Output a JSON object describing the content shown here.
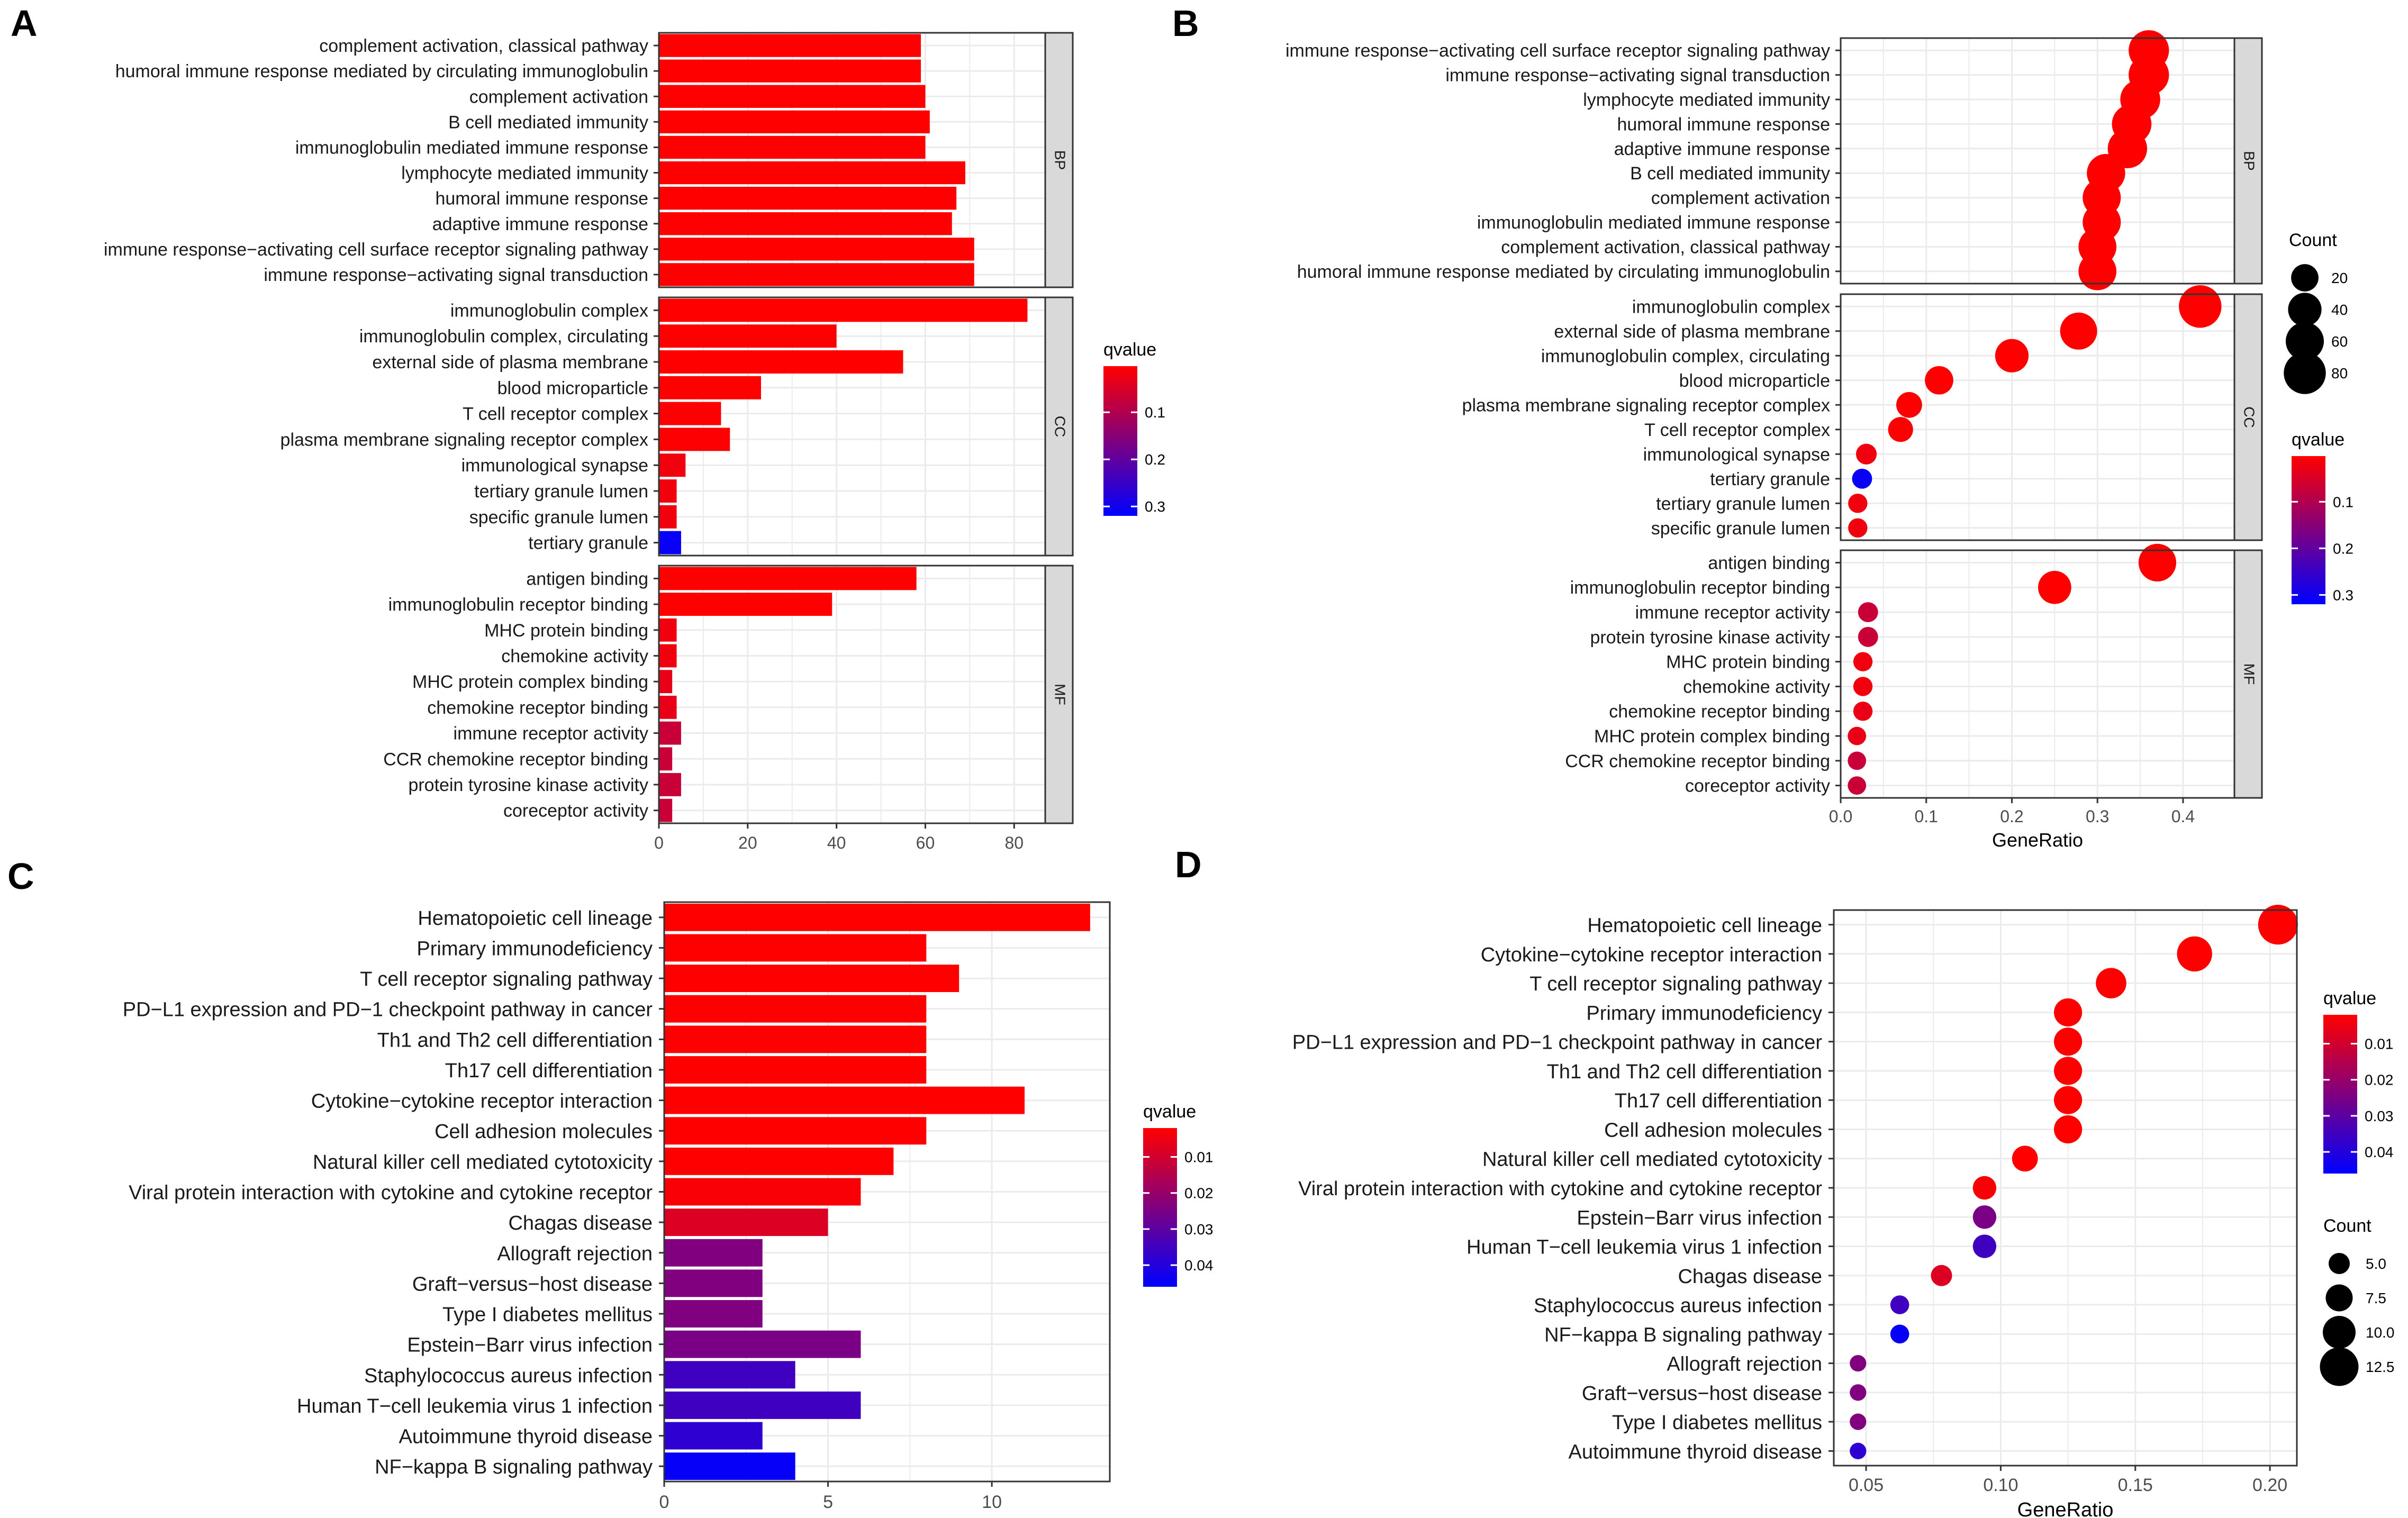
{
  "figure": {
    "panel_letters": [
      "A",
      "B",
      "C",
      "D"
    ]
  },
  "colors": {
    "low_q": "#ff0000",
    "high_q": "#0000ff",
    "grid": "#ebebeb",
    "strip": "#d9d9d9"
  },
  "chart_data": [
    {
      "panel": "A",
      "type": "bar",
      "orientation": "horizontal",
      "xlim": [
        0,
        87
      ],
      "xticks": [
        0,
        20,
        40,
        60,
        80
      ],
      "legend": {
        "title": "qvalue",
        "ticks": [
          "0.1",
          "0.2",
          "0.3"
        ],
        "min": 0.002,
        "max": 0.32,
        "placement": "right"
      },
      "facets": [
        {
          "label": "BP",
          "categories": [
            {
              "name": "complement activation, classical pathway",
              "value": 59,
              "q": 0.001
            },
            {
              "name": "humoral immune response mediated by circulating immunoglobulin",
              "value": 59,
              "q": 0.001
            },
            {
              "name": "complement activation",
              "value": 60,
              "q": 0.001
            },
            {
              "name": "B cell mediated immunity",
              "value": 61,
              "q": 0.001
            },
            {
              "name": "immunoglobulin mediated immune response",
              "value": 60,
              "q": 0.001
            },
            {
              "name": "lymphocyte mediated immunity",
              "value": 69,
              "q": 0.001
            },
            {
              "name": "humoral immune response",
              "value": 67,
              "q": 0.001
            },
            {
              "name": "adaptive immune response",
              "value": 66,
              "q": 0.001
            },
            {
              "name": "immune response−activating cell surface receptor signaling pathway",
              "value": 71,
              "q": 0.001
            },
            {
              "name": "immune response−activating signal transduction",
              "value": 71,
              "q": 0.001
            }
          ]
        },
        {
          "label": "CC",
          "categories": [
            {
              "name": "immunoglobulin complex",
              "value": 83,
              "q": 0.001
            },
            {
              "name": "immunoglobulin complex, circulating",
              "value": 40,
              "q": 0.001
            },
            {
              "name": "external side of plasma membrane",
              "value": 55,
              "q": 0.001
            },
            {
              "name": "blood microparticle",
              "value": 23,
              "q": 0.001
            },
            {
              "name": "T cell receptor complex",
              "value": 14,
              "q": 0.005
            },
            {
              "name": "plasma membrane signaling receptor complex",
              "value": 16,
              "q": 0.005
            },
            {
              "name": "immunological synapse",
              "value": 6,
              "q": 0.02
            },
            {
              "name": "tertiary granule lumen",
              "value": 4,
              "q": 0.02
            },
            {
              "name": "specific granule lumen",
              "value": 4,
              "q": 0.02
            },
            {
              "name": "tertiary granule",
              "value": 5,
              "q": 0.31
            }
          ]
        },
        {
          "label": "MF",
          "categories": [
            {
              "name": "antigen binding",
              "value": 58,
              "q": 0.001
            },
            {
              "name": "immunoglobulin receptor binding",
              "value": 39,
              "q": 0.001
            },
            {
              "name": "MHC protein binding",
              "value": 4,
              "q": 0.02
            },
            {
              "name": "chemokine activity",
              "value": 4,
              "q": 0.02
            },
            {
              "name": "MHC protein complex binding",
              "value": 3,
              "q": 0.03
            },
            {
              "name": "chemokine receptor binding",
              "value": 4,
              "q": 0.03
            },
            {
              "name": "immune receptor activity",
              "value": 5,
              "q": 0.07
            },
            {
              "name": "CCR chemokine receptor binding",
              "value": 3,
              "q": 0.07
            },
            {
              "name": "protein tyrosine kinase activity",
              "value": 5,
              "q": 0.07
            },
            {
              "name": "coreceptor activity",
              "value": 3,
              "q": 0.07
            }
          ]
        }
      ]
    },
    {
      "panel": "B",
      "type": "scatter",
      "xlabel": "GeneRatio",
      "xlim": [
        0,
        0.46
      ],
      "xticks": [
        "0.0",
        "0.1",
        "0.2",
        "0.3",
        "0.4"
      ],
      "size_legend": {
        "title": "Count",
        "ticks": [
          "20",
          "40",
          "60",
          "80"
        ],
        "values": [
          20,
          40,
          60,
          80
        ],
        "range": [
          3,
          87
        ],
        "placement": "right-top"
      },
      "color_legend": {
        "title": "qvalue",
        "ticks": [
          "0.1",
          "0.2",
          "0.3"
        ],
        "min": 0.002,
        "max": 0.32,
        "placement": "right-bottom"
      },
      "facets": [
        {
          "label": "BP",
          "points": [
            {
              "name": "immune response−activating cell surface receptor signaling pathway",
              "x": 0.36,
              "count": 71,
              "q": 0.001
            },
            {
              "name": "immune response−activating signal transduction",
              "x": 0.36,
              "count": 71,
              "q": 0.001
            },
            {
              "name": "lymphocyte mediated immunity",
              "x": 0.35,
              "count": 69,
              "q": 0.001
            },
            {
              "name": "humoral immune response",
              "x": 0.34,
              "count": 67,
              "q": 0.001
            },
            {
              "name": "adaptive immune response",
              "x": 0.335,
              "count": 66,
              "q": 0.001
            },
            {
              "name": "B cell mediated immunity",
              "x": 0.31,
              "count": 61,
              "q": 0.001
            },
            {
              "name": "complement activation",
              "x": 0.305,
              "count": 60,
              "q": 0.001
            },
            {
              "name": "immunoglobulin mediated immune response",
              "x": 0.305,
              "count": 60,
              "q": 0.001
            },
            {
              "name": "complement activation, classical pathway",
              "x": 0.3,
              "count": 59,
              "q": 0.001
            },
            {
              "name": "humoral immune response mediated by circulating immunoglobulin",
              "x": 0.3,
              "count": 59,
              "q": 0.001
            }
          ]
        },
        {
          "label": "CC",
          "points": [
            {
              "name": "immunoglobulin complex",
              "x": 0.42,
              "count": 83,
              "q": 0.001
            },
            {
              "name": "external side of plasma membrane",
              "x": 0.278,
              "count": 55,
              "q": 0.001
            },
            {
              "name": "immunoglobulin complex, circulating",
              "x": 0.2,
              "count": 40,
              "q": 0.001
            },
            {
              "name": "blood microparticle",
              "x": 0.115,
              "count": 23,
              "q": 0.001
            },
            {
              "name": "plasma membrane signaling receptor complex",
              "x": 0.08,
              "count": 16,
              "q": 0.005
            },
            {
              "name": "T cell receptor complex",
              "x": 0.07,
              "count": 14,
              "q": 0.005
            },
            {
              "name": "immunological synapse",
              "x": 0.03,
              "count": 6,
              "q": 0.02
            },
            {
              "name": "tertiary granule",
              "x": 0.025,
              "count": 5,
              "q": 0.31
            },
            {
              "name": "tertiary granule lumen",
              "x": 0.02,
              "count": 4,
              "q": 0.02
            },
            {
              "name": "specific granule lumen",
              "x": 0.02,
              "count": 4,
              "q": 0.02
            }
          ]
        },
        {
          "label": "MF",
          "points": [
            {
              "name": "antigen binding",
              "x": 0.37,
              "count": 58,
              "q": 0.001
            },
            {
              "name": "immunoglobulin receptor binding",
              "x": 0.25,
              "count": 39,
              "q": 0.001
            },
            {
              "name": "immune receptor activity",
              "x": 0.032,
              "count": 5,
              "q": 0.07
            },
            {
              "name": "protein tyrosine kinase activity",
              "x": 0.032,
              "count": 5,
              "q": 0.07
            },
            {
              "name": "MHC protein binding",
              "x": 0.026,
              "count": 4,
              "q": 0.02
            },
            {
              "name": "chemokine activity",
              "x": 0.026,
              "count": 4,
              "q": 0.02
            },
            {
              "name": "chemokine receptor binding",
              "x": 0.026,
              "count": 4,
              "q": 0.03
            },
            {
              "name": "MHC protein complex binding",
              "x": 0.019,
              "count": 3,
              "q": 0.03
            },
            {
              "name": "CCR chemokine receptor binding",
              "x": 0.019,
              "count": 3,
              "q": 0.07
            },
            {
              "name": "coreceptor activity",
              "x": 0.019,
              "count": 3,
              "q": 0.07
            }
          ]
        }
      ]
    },
    {
      "panel": "C",
      "type": "bar",
      "orientation": "horizontal",
      "xlim": [
        0,
        13.6
      ],
      "xticks": [
        0,
        5,
        10
      ],
      "legend": {
        "title": "qvalue",
        "ticks": [
          "0.01",
          "0.02",
          "0.03",
          "0.04"
        ],
        "min": 0.002,
        "max": 0.046,
        "placement": "right"
      },
      "categories": [
        {
          "name": "Hematopoietic cell lineage",
          "value": 13,
          "q": 0.0005
        },
        {
          "name": "Primary immunodeficiency",
          "value": 8,
          "q": 0.0005
        },
        {
          "name": "T cell receptor signaling pathway",
          "value": 9,
          "q": 0.0005
        },
        {
          "name": "PD−L1 expression and PD−1 checkpoint pathway in cancer",
          "value": 8,
          "q": 0.0005
        },
        {
          "name": "Th1 and Th2 cell differentiation",
          "value": 8,
          "q": 0.0005
        },
        {
          "name": "Th17 cell differentiation",
          "value": 8,
          "q": 0.0005
        },
        {
          "name": "Cytokine−cytokine receptor interaction",
          "value": 11,
          "q": 0.0005
        },
        {
          "name": "Cell adhesion molecules",
          "value": 8,
          "q": 0.0005
        },
        {
          "name": "Natural killer cell mediated cytotoxicity",
          "value": 7,
          "q": 0.0005
        },
        {
          "name": "Viral protein interaction with cytokine and cytokine receptor",
          "value": 6,
          "q": 0.003
        },
        {
          "name": "Chagas disease",
          "value": 5,
          "q": 0.008
        },
        {
          "name": "Allograft rejection",
          "value": 3,
          "q": 0.024
        },
        {
          "name": "Graft−versus−host disease",
          "value": 3,
          "q": 0.024
        },
        {
          "name": "Type I diabetes mellitus",
          "value": 3,
          "q": 0.024
        },
        {
          "name": "Epstein−Barr virus infection",
          "value": 6,
          "q": 0.025
        },
        {
          "name": "Staphylococcus aureus infection",
          "value": 4,
          "q": 0.035
        },
        {
          "name": "Human T−cell leukemia virus 1 infection",
          "value": 6,
          "q": 0.035
        },
        {
          "name": "Autoimmune thyroid disease",
          "value": 3,
          "q": 0.038
        },
        {
          "name": "NF−kappa B signaling pathway",
          "value": 4,
          "q": 0.045
        }
      ]
    },
    {
      "panel": "D",
      "type": "scatter",
      "xlabel": "GeneRatio",
      "xlim": [
        0.038,
        0.21
      ],
      "xticks": [
        "0.05",
        "0.10",
        "0.15",
        "0.20"
      ],
      "color_legend": {
        "title": "qvalue",
        "ticks": [
          "0.01",
          "0.02",
          "0.03",
          "0.04"
        ],
        "min": 0.002,
        "max": 0.046,
        "placement": "right-top"
      },
      "size_legend": {
        "title": "Count",
        "ticks": [
          "5.0",
          "7.5",
          "10.0",
          "12.5"
        ],
        "values": [
          5,
          7.5,
          10,
          12.5
        ],
        "range": [
          3,
          13
        ],
        "placement": "right-bottom"
      },
      "points": [
        {
          "name": "Hematopoietic cell lineage",
          "x": 0.203,
          "count": 13,
          "q": 0.0005
        },
        {
          "name": "Cytokine−cytokine receptor interaction",
          "x": 0.172,
          "count": 11,
          "q": 0.0005
        },
        {
          "name": "T cell receptor signaling pathway",
          "x": 0.141,
          "count": 9,
          "q": 0.0005
        },
        {
          "name": "Primary immunodeficiency",
          "x": 0.125,
          "count": 8,
          "q": 0.0005
        },
        {
          "name": "PD−L1 expression and PD−1 checkpoint pathway in cancer",
          "x": 0.125,
          "count": 8,
          "q": 0.0005
        },
        {
          "name": "Th1 and Th2 cell differentiation",
          "x": 0.125,
          "count": 8,
          "q": 0.0005
        },
        {
          "name": "Th17 cell differentiation",
          "x": 0.125,
          "count": 8,
          "q": 0.0005
        },
        {
          "name": "Cell adhesion molecules",
          "x": 0.125,
          "count": 8,
          "q": 0.0005
        },
        {
          "name": "Natural killer cell mediated cytotoxicity",
          "x": 0.109,
          "count": 7,
          "q": 0.0005
        },
        {
          "name": "Viral protein interaction with cytokine and cytokine receptor",
          "x": 0.094,
          "count": 6,
          "q": 0.003
        },
        {
          "name": "Epstein−Barr virus infection",
          "x": 0.094,
          "count": 6,
          "q": 0.025
        },
        {
          "name": "Human T−cell leukemia virus 1 infection",
          "x": 0.094,
          "count": 6,
          "q": 0.035
        },
        {
          "name": "Chagas disease",
          "x": 0.078,
          "count": 5,
          "q": 0.008
        },
        {
          "name": "Staphylococcus aureus infection",
          "x": 0.0625,
          "count": 4,
          "q": 0.035
        },
        {
          "name": "NF−kappa B signaling pathway",
          "x": 0.0625,
          "count": 4,
          "q": 0.045
        },
        {
          "name": "Allograft rejection",
          "x": 0.047,
          "count": 3,
          "q": 0.024
        },
        {
          "name": "Graft−versus−host disease",
          "x": 0.047,
          "count": 3,
          "q": 0.024
        },
        {
          "name": "Type I diabetes mellitus",
          "x": 0.047,
          "count": 3,
          "q": 0.024
        },
        {
          "name": "Autoimmune thyroid disease",
          "x": 0.047,
          "count": 3,
          "q": 0.038
        }
      ]
    }
  ]
}
